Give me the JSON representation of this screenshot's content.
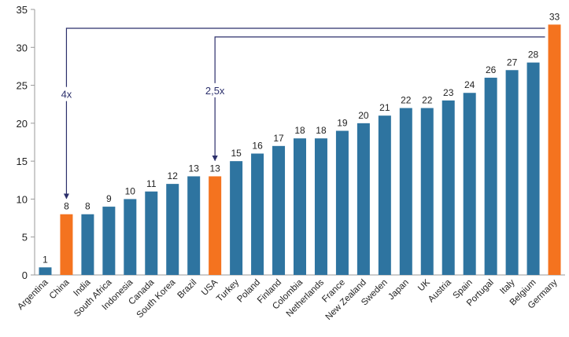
{
  "chart_data": {
    "type": "bar",
    "title": "",
    "xlabel": "",
    "ylabel": "",
    "ylim": [
      0,
      35
    ],
    "yticks": [
      0,
      5,
      10,
      15,
      20,
      25,
      30,
      35
    ],
    "grid": false,
    "categories": [
      "Argentina",
      "China",
      "India",
      "South Africa",
      "Indonesia",
      "Canada",
      "South Korea",
      "Brazil",
      "USA",
      "Turkey",
      "Poland",
      "Finland",
      "Colombia",
      "Netherlands",
      "France",
      "New Zealand",
      "Sweden",
      "Japan",
      "UK",
      "Austria",
      "Spain",
      "Portugal",
      "Italy",
      "Belgium",
      "Germany"
    ],
    "values": [
      1,
      8,
      8,
      9,
      10,
      11,
      12,
      13,
      13,
      15,
      16,
      17,
      18,
      18,
      19,
      20,
      21,
      22,
      22,
      23,
      24,
      26,
      27,
      28,
      33
    ],
    "highlighted": [
      "China",
      "USA",
      "Germany"
    ],
    "colors": {
      "default": "#2e74a0",
      "highlight": "#f4731f",
      "annotation": "#2b2f6b"
    },
    "annotations": [
      {
        "text": "4x",
        "from": "Germany",
        "to": "China"
      },
      {
        "text": "2,5x",
        "from": "Germany",
        "to": "USA"
      }
    ]
  }
}
